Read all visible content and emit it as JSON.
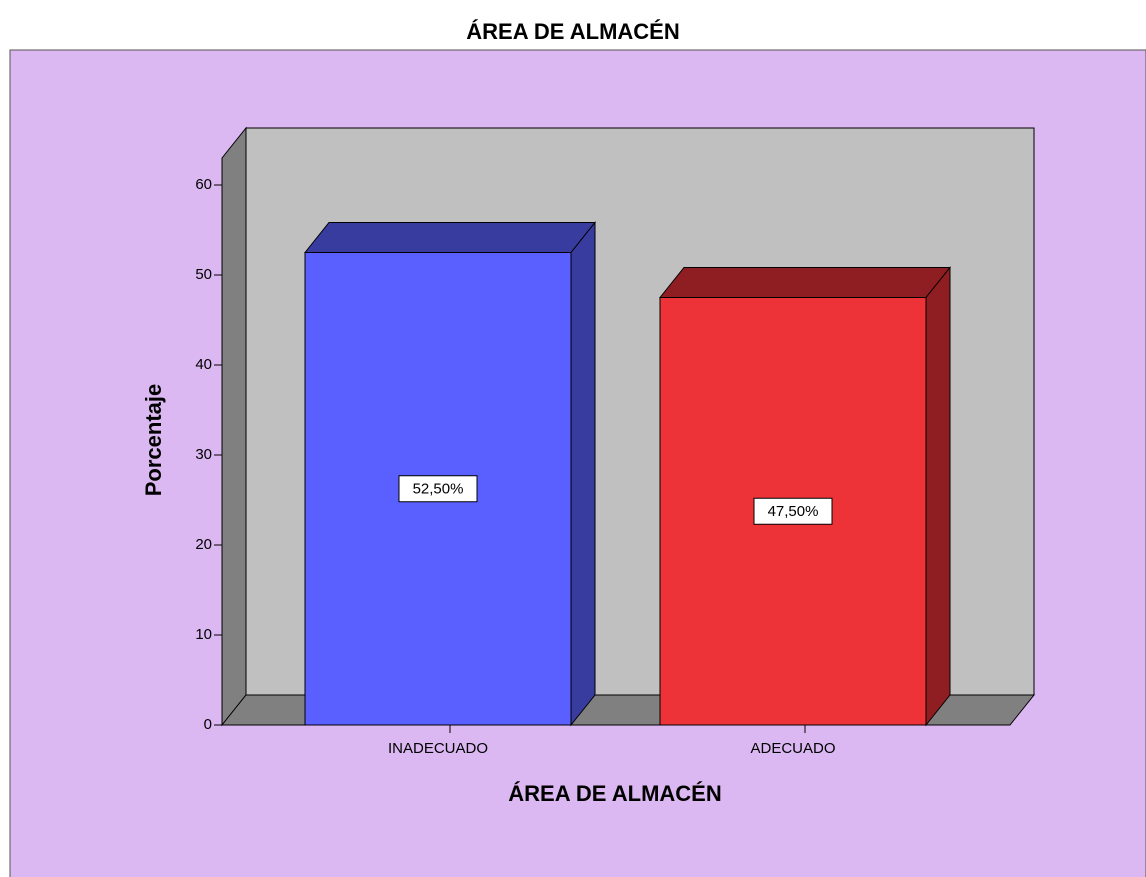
{
  "chart_data": {
    "type": "bar3d",
    "title": "ÁREA DE ALMACÉN",
    "categories": [
      "INADECUADO",
      "ADECUADO"
    ],
    "values": [
      52.5,
      47.5
    ],
    "value_labels": [
      "52,50%",
      "47,50%"
    ],
    "colors": [
      "#5a5fff",
      "#ee3338"
    ],
    "side_colors": [
      "#383c9f",
      "#8f1e22"
    ],
    "x_label": "ÁREA DE ALMACÉN",
    "y_label": "Porcentaje",
    "ylim": [
      0,
      63
    ],
    "yticks": [
      0,
      10,
      20,
      30,
      40,
      50,
      60
    ]
  }
}
